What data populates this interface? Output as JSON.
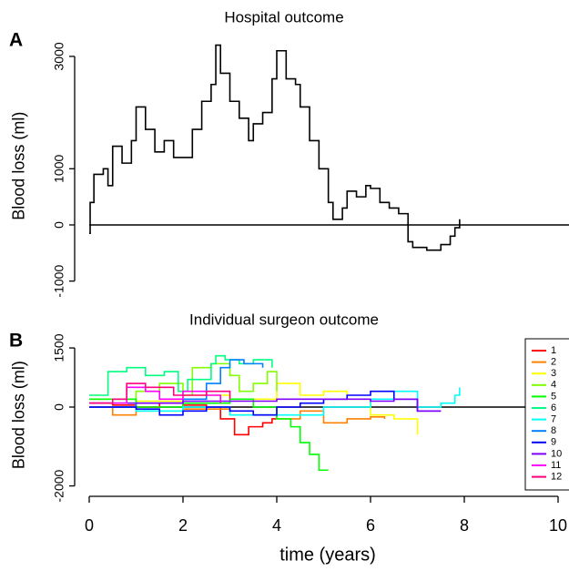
{
  "chart_data": [
    {
      "type": "line",
      "step": true,
      "panel_label": "A",
      "title": "Hospital outcome",
      "y_label": "Blood loss (ml)",
      "xlim": [
        0,
        10
      ],
      "ylim": [
        -1200,
        3300
      ],
      "yticks": [
        -1000,
        0,
        1000,
        3000
      ],
      "color": "#000000",
      "x": [
        0,
        0.02,
        0.1,
        0.3,
        0.4,
        0.5,
        0.7,
        0.9,
        1.0,
        1.2,
        1.4,
        1.6,
        1.8,
        2.0,
        2.2,
        2.4,
        2.6,
        2.7,
        2.8,
        3.0,
        3.2,
        3.4,
        3.5,
        3.7,
        3.9,
        4.0,
        4.2,
        4.4,
        4.5,
        4.7,
        4.9,
        5.1,
        5.2,
        5.4,
        5.5,
        5.7,
        5.9,
        6.0,
        6.2,
        6.4,
        6.6,
        6.8,
        6.9,
        7.2,
        7.5,
        7.7,
        7.8,
        7.9
      ],
      "values": [
        -150,
        400,
        900,
        1000,
        700,
        1400,
        1100,
        1500,
        2100,
        1700,
        1300,
        1500,
        1200,
        1200,
        1700,
        2200,
        2500,
        3200,
        2700,
        2200,
        1900,
        1500,
        1800,
        2000,
        2600,
        3100,
        2600,
        2500,
        2100,
        1500,
        1000,
        400,
        100,
        300,
        600,
        500,
        700,
        650,
        400,
        300,
        200,
        -300,
        -400,
        -450,
        -350,
        -200,
        -50,
        100
      ]
    },
    {
      "type": "line",
      "step": true,
      "panel_label": "B",
      "title": "Individual surgeon outcome",
      "y_label": "Blood loss (ml)",
      "x_label": "time (years)",
      "xlim": [
        0,
        10
      ],
      "xticks": [
        0,
        2,
        4,
        6,
        8,
        10
      ],
      "ylim": [
        -2100,
        1700
      ],
      "yticks": [
        -2000,
        0,
        1500
      ],
      "series": [
        {
          "name": "1",
          "color": "#ff0000",
          "x": [
            0,
            0.5,
            1,
            1.5,
            2,
            2.5,
            2.8,
            3.1,
            3.4,
            3.7,
            3.9,
            4.0
          ],
          "values": [
            100,
            50,
            0,
            100,
            50,
            0,
            -300,
            -700,
            -500,
            -400,
            -300,
            -300
          ]
        },
        {
          "name": "2",
          "color": "#ff8000",
          "x": [
            0,
            0.5,
            1,
            2,
            3,
            4,
            4.5,
            5,
            5.5,
            6,
            6.3
          ],
          "values": [
            0,
            -200,
            -100,
            -50,
            -200,
            -300,
            -100,
            -400,
            -300,
            -250,
            -300
          ]
        },
        {
          "name": "3",
          "color": "#ffff00",
          "x": [
            0,
            1,
            2,
            3,
            4,
            4.5,
            5,
            5.5,
            6,
            6.5,
            7
          ],
          "values": [
            100,
            150,
            300,
            200,
            600,
            300,
            400,
            200,
            -200,
            -300,
            -700
          ]
        },
        {
          "name": "4",
          "color": "#80ff00",
          "x": [
            0,
            1,
            1.5,
            2,
            2.2,
            2.6,
            3,
            3.2,
            3.5,
            3.8,
            4
          ],
          "values": [
            200,
            400,
            600,
            300,
            1000,
            1100,
            800,
            400,
            600,
            900,
            400
          ]
        },
        {
          "name": "5",
          "color": "#00ff00",
          "x": [
            0,
            1,
            2,
            3,
            3.5,
            4,
            4.3,
            4.5,
            4.7,
            4.9,
            5.1
          ],
          "values": [
            200,
            0,
            100,
            200,
            0,
            -300,
            -500,
            -900,
            -1200,
            -1600,
            -1600
          ]
        },
        {
          "name": "6",
          "color": "#00ff80",
          "x": [
            0,
            0.4,
            0.8,
            1.2,
            1.6,
            1.9,
            2.1,
            2.6,
            2.7,
            2.9,
            3.2,
            3.5,
            3.8,
            3.9
          ],
          "values": [
            300,
            900,
            1000,
            800,
            900,
            400,
            700,
            1100,
            1300,
            1200,
            1100,
            1200,
            1200,
            1000
          ]
        },
        {
          "name": "7",
          "color": "#00ffff",
          "x": [
            0,
            1,
            2,
            3,
            4,
            5,
            6,
            6.5,
            7,
            7.5,
            7.8,
            7.9
          ],
          "values": [
            100,
            -100,
            0,
            -200,
            -200,
            0,
            200,
            400,
            0,
            100,
            300,
            500
          ]
        },
        {
          "name": "8",
          "color": "#0080ff",
          "x": [
            0,
            1,
            2,
            2.5,
            2.8,
            3,
            3.3,
            3.7
          ],
          "values": [
            0,
            100,
            200,
            600,
            1000,
            1200,
            1100,
            1000
          ]
        },
        {
          "name": "9",
          "color": "#0000ff",
          "x": [
            0,
            1,
            1.5,
            2,
            2.5,
            3,
            3.5,
            4,
            4.5,
            5,
            5.5,
            6,
            6.5,
            7,
            7.5
          ],
          "values": [
            0,
            -50,
            -200,
            -100,
            0,
            -100,
            -200,
            0,
            100,
            200,
            300,
            400,
            200,
            -100,
            -100
          ]
        },
        {
          "name": "10",
          "color": "#8000ff",
          "x": [
            0,
            1,
            2,
            3,
            4,
            5,
            6,
            6.5,
            7,
            7.5
          ],
          "values": [
            100,
            100,
            150,
            150,
            200,
            200,
            150,
            200,
            -100,
            -100
          ]
        },
        {
          "name": "11",
          "color": "#ff00ff",
          "x": [
            0,
            0.5,
            0.8,
            1.2,
            1.5,
            2,
            2.5,
            2.8
          ],
          "values": [
            100,
            100,
            500,
            400,
            200,
            400,
            300,
            100
          ]
        },
        {
          "name": "12",
          "color": "#ff0080",
          "x": [
            0,
            0.5,
            0.8,
            1.2,
            1.8,
            2.5,
            3
          ],
          "values": [
            100,
            200,
            600,
            500,
            300,
            400,
            200
          ]
        }
      ]
    }
  ]
}
